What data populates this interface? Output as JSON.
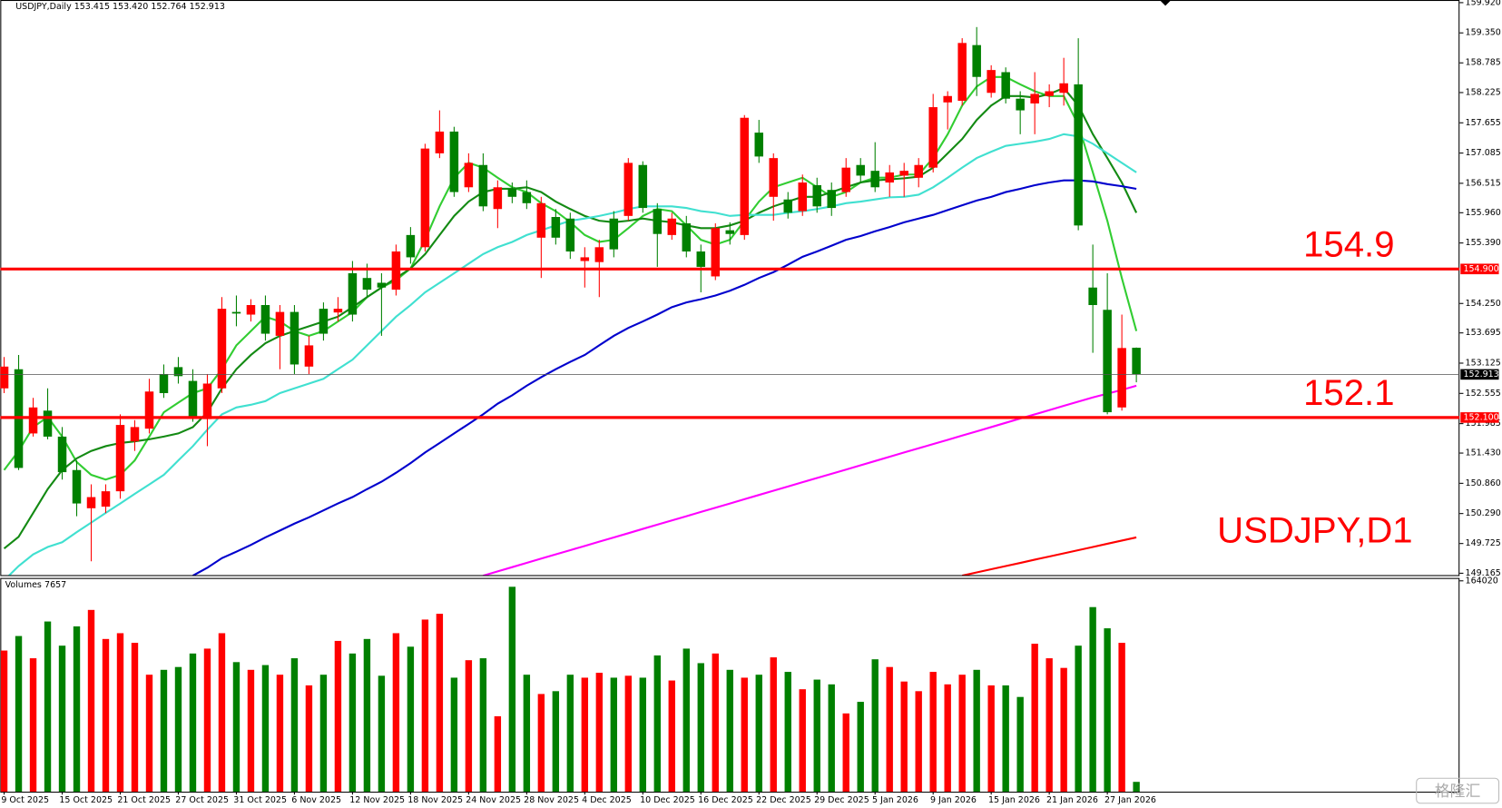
{
  "chart_data": [
    {
      "type": "candlestick",
      "title": "USDJPY,Daily  153.415 153.420 152.764 152.913",
      "watermark": "USDJPY,D1",
      "up_color": "#ff0000",
      "down_color": "#008000",
      "categories": [
        "9 Oct 2025",
        null,
        null,
        null,
        "15 Oct 2025",
        null,
        null,
        null,
        "21 Oct 2025",
        null,
        null,
        null,
        "27 Oct 2025",
        null,
        null,
        null,
        "31 Oct 2025",
        null,
        null,
        null,
        "6 Nov 2025",
        null,
        null,
        null,
        "12 Nov 2025",
        null,
        null,
        null,
        "18 Nov 2025",
        null,
        null,
        null,
        "24 Nov 2025",
        null,
        null,
        null,
        "28 Nov 2025",
        null,
        null,
        null,
        "4 Dec 2025",
        null,
        null,
        null,
        "10 Dec 2025",
        null,
        null,
        null,
        "16 Dec 2025",
        null,
        null,
        null,
        "22 Dec 2025",
        null,
        null,
        null,
        "29 Dec 2025",
        null,
        null,
        null,
        "5 Jan 2026",
        null,
        null,
        null,
        "9 Jan 2026",
        null,
        null,
        null,
        "15 Jan 2026",
        null,
        null,
        null,
        "21 Jan 2026",
        null,
        null,
        null,
        "27 Jan 2026",
        null,
        null
      ],
      "open": [
        152.65,
        153.01,
        151.8,
        152.23,
        151.74,
        151.11,
        150.39,
        150.42,
        150.71,
        151.65,
        151.89,
        152.92,
        153.05,
        152.79,
        152.07,
        152.65,
        154.09,
        154.04,
        154.22,
        153.64,
        154.09,
        153.06,
        154.15,
        154.08,
        154.82,
        154.73,
        154.64,
        154.51,
        155.54,
        155.31,
        157.08,
        157.49,
        156.44,
        156.86,
        156.03,
        156.41,
        156.35,
        155.49,
        155.88,
        155.85,
        155.05,
        155.03,
        155.85,
        155.9,
        156.86,
        156.03,
        155.54,
        155.76,
        155.23,
        154.76,
        155.63,
        155.54,
        157.47,
        156.26,
        156.21,
        155.99,
        156.48,
        156.39,
        156.35,
        156.86,
        156.75,
        156.53,
        156.66,
        156.62,
        156.81,
        158.04,
        158.07,
        159.12,
        158.22,
        158.61,
        158.11,
        158.02,
        158.16,
        158.22,
        158.38,
        154.55,
        154.13,
        152.29,
        153.415
      ],
      "high": [
        153.24,
        153.28,
        152.47,
        152.65,
        151.92,
        151.29,
        150.84,
        150.84,
        152.16,
        152.05,
        152.83,
        153.1,
        153.24,
        153.01,
        152.92,
        154.37,
        154.4,
        154.33,
        154.4,
        154.22,
        154.22,
        153.64,
        154.27,
        154.37,
        155.05,
        155.0,
        154.82,
        155.36,
        155.69,
        157.26,
        157.89,
        157.58,
        157.08,
        157.08,
        156.57,
        156.53,
        156.57,
        156.26,
        156.03,
        155.96,
        155.31,
        155.45,
        155.99,
        156.99,
        156.93,
        156.14,
        155.96,
        155.9,
        155.36,
        155.76,
        155.78,
        157.8,
        157.71,
        157.08,
        156.35,
        156.68,
        156.62,
        156.53,
        156.99,
        156.99,
        157.29,
        156.86,
        156.9,
        156.99,
        158.2,
        158.25,
        159.25,
        159.46,
        158.74,
        158.7,
        158.25,
        158.61,
        158.38,
        158.88,
        159.25,
        155.36,
        154.82,
        154.04,
        153.42
      ],
      "low": [
        152.56,
        151.11,
        151.74,
        151.69,
        150.93,
        150.24,
        149.39,
        150.3,
        150.57,
        151.47,
        151.8,
        152.47,
        152.74,
        152.02,
        151.56,
        152.56,
        153.82,
        153.91,
        153.55,
        153.01,
        152.92,
        152.92,
        153.55,
        153.91,
        153.91,
        154.37,
        153.64,
        154.4,
        155.0,
        155.23,
        156.99,
        156.26,
        156.35,
        155.99,
        155.67,
        156.14,
        156.03,
        154.73,
        155.36,
        155.09,
        154.55,
        154.37,
        155.12,
        155.81,
        155.96,
        154.94,
        155.45,
        155.12,
        154.46,
        154.69,
        155.36,
        155.45,
        156.9,
        155.81,
        155.85,
        155.9,
        155.96,
        155.9,
        156.26,
        156.53,
        156.35,
        156.26,
        156.26,
        156.44,
        156.72,
        157.53,
        157.98,
        158.16,
        158.13,
        158.02,
        157.44,
        157.44,
        157.95,
        157.98,
        155.63,
        153.32,
        152.16,
        152.23,
        152.764
      ],
      "close": [
        153.06,
        151.15,
        152.29,
        151.74,
        151.07,
        150.48,
        150.6,
        150.71,
        151.96,
        151.92,
        152.59,
        152.56,
        152.88,
        152.11,
        152.74,
        154.15,
        154.06,
        154.22,
        153.68,
        154.09,
        153.1,
        153.46,
        153.68,
        154.15,
        154.04,
        154.51,
        154.55,
        155.23,
        155.12,
        157.17,
        157.49,
        156.35,
        156.9,
        156.08,
        156.44,
        156.26,
        156.14,
        156.14,
        155.49,
        155.23,
        155.12,
        155.31,
        155.27,
        156.9,
        156.05,
        155.56,
        155.85,
        155.23,
        154.94,
        155.67,
        155.56,
        157.75,
        157.02,
        156.99,
        155.96,
        156.53,
        156.08,
        156.05,
        156.81,
        156.66,
        156.44,
        156.72,
        156.75,
        156.86,
        157.95,
        158.16,
        159.16,
        158.52,
        158.65,
        158.11,
        157.89,
        158.2,
        158.25,
        158.4,
        155.72,
        154.22,
        152.2,
        153.41,
        152.913
      ],
      "series": [
        {
          "color": "#32cd32",
          "values": [
            151.11,
            151.47,
            151.92,
            152.11,
            151.74,
            151.26,
            151.02,
            150.93,
            151.02,
            151.29,
            151.74,
            152.2,
            152.38,
            152.56,
            152.65,
            153.01,
            153.46,
            153.73,
            154.0,
            153.91,
            153.73,
            153.64,
            153.73,
            153.91,
            154.09,
            154.37,
            154.55,
            154.69,
            154.91,
            155.45,
            156.08,
            156.62,
            156.9,
            156.81,
            156.62,
            156.44,
            156.35,
            156.14,
            155.99,
            155.78,
            155.54,
            155.41,
            155.45,
            155.67,
            155.9,
            156.03,
            155.99,
            155.72,
            155.45,
            155.36,
            155.45,
            155.81,
            156.17,
            156.44,
            156.53,
            156.62,
            156.44,
            156.26,
            156.35,
            156.53,
            156.62,
            156.62,
            156.68,
            156.68,
            156.99,
            157.44,
            157.98,
            158.34,
            158.52,
            158.52,
            158.38,
            158.25,
            158.16,
            158.16,
            157.62,
            156.72,
            155.81,
            154.73,
            153.73
          ]
        },
        {
          "color": "#138a13",
          "values": [
            149.63,
            149.85,
            150.3,
            150.75,
            151.11,
            151.33,
            151.47,
            151.56,
            151.62,
            151.65,
            151.69,
            151.74,
            151.8,
            151.92,
            152.2,
            152.65,
            153.01,
            153.28,
            153.5,
            153.64,
            153.73,
            153.82,
            153.91,
            154.0,
            154.18,
            154.37,
            154.55,
            154.73,
            154.91,
            155.18,
            155.54,
            155.9,
            156.17,
            156.35,
            156.41,
            156.41,
            156.44,
            156.35,
            156.17,
            156.03,
            155.9,
            155.81,
            155.78,
            155.81,
            155.85,
            155.81,
            155.78,
            155.72,
            155.67,
            155.67,
            155.72,
            155.81,
            155.96,
            156.08,
            156.17,
            156.26,
            156.26,
            156.35,
            156.44,
            156.53,
            156.57,
            156.59,
            156.61,
            156.64,
            156.81,
            157.08,
            157.35,
            157.71,
            157.98,
            158.16,
            158.16,
            158.13,
            158.2,
            158.31,
            157.98,
            157.44,
            156.99,
            156.53,
            155.96
          ]
        },
        {
          "color": "#40e0d0",
          "values": [
            149.03,
            149.3,
            149.52,
            149.66,
            149.75,
            149.94,
            150.12,
            150.3,
            150.48,
            150.66,
            150.84,
            151.02,
            151.29,
            151.56,
            151.87,
            152.16,
            152.29,
            152.34,
            152.41,
            152.56,
            152.65,
            152.74,
            152.83,
            153.01,
            153.19,
            153.46,
            153.73,
            154.0,
            154.22,
            154.46,
            154.64,
            154.82,
            155.0,
            155.18,
            155.31,
            155.41,
            155.54,
            155.63,
            155.72,
            155.81,
            155.85,
            155.9,
            155.96,
            156.03,
            156.08,
            156.08,
            156.08,
            156.05,
            155.99,
            155.96,
            155.9,
            155.92,
            155.92,
            155.92,
            155.96,
            155.99,
            156.03,
            156.08,
            156.14,
            156.17,
            156.21,
            156.25,
            156.26,
            156.3,
            156.44,
            156.62,
            156.81,
            156.99,
            157.11,
            157.22,
            157.26,
            157.3,
            157.35,
            157.44,
            157.4,
            157.26,
            157.08,
            156.9,
            156.72
          ]
        },
        {
          "color": "#0000cd",
          "values": [
            null,
            null,
            null,
            null,
            null,
            null,
            null,
            null,
            null,
            null,
            null,
            null,
            null,
            149.12,
            149.27,
            149.45,
            149.57,
            149.7,
            149.84,
            149.97,
            150.1,
            150.22,
            150.35,
            150.48,
            150.6,
            150.75,
            150.89,
            151.06,
            151.24,
            151.44,
            151.62,
            151.8,
            151.98,
            152.16,
            152.36,
            152.52,
            152.7,
            152.86,
            153.01,
            153.15,
            153.28,
            153.46,
            153.64,
            153.79,
            153.91,
            154.04,
            154.18,
            154.27,
            154.33,
            154.4,
            154.49,
            154.6,
            154.73,
            154.84,
            154.98,
            155.13,
            155.23,
            155.34,
            155.45,
            155.52,
            155.61,
            155.69,
            155.78,
            155.85,
            155.92,
            156.01,
            156.1,
            156.19,
            156.26,
            156.35,
            156.41,
            156.48,
            156.53,
            156.57,
            156.57,
            156.55,
            156.5,
            156.46,
            156.41
          ]
        },
        {
          "color": "#ff00ff",
          "values": [
            null,
            null,
            null,
            null,
            null,
            null,
            null,
            null,
            null,
            null,
            null,
            null,
            null,
            null,
            null,
            null,
            null,
            null,
            null,
            null,
            null,
            null,
            null,
            null,
            null,
            null,
            null,
            null,
            null,
            null,
            null,
            null,
            null,
            149.12,
            149.2,
            149.28,
            149.36,
            149.44,
            149.52,
            149.6,
            149.68,
            149.76,
            149.84,
            149.92,
            150.0,
            150.08,
            150.16,
            150.24,
            150.32,
            150.4,
            150.48,
            150.56,
            150.64,
            150.72,
            150.8,
            150.88,
            150.96,
            151.04,
            151.12,
            151.2,
            151.28,
            151.36,
            151.44,
            151.52,
            151.6,
            151.68,
            151.76,
            151.84,
            151.92,
            152.0,
            152.08,
            152.16,
            152.24,
            152.32,
            152.4,
            152.48,
            152.55,
            152.62,
            152.7
          ]
        },
        {
          "color": "#ff0000",
          "values": [
            null,
            null,
            null,
            null,
            null,
            null,
            null,
            null,
            null,
            null,
            null,
            null,
            null,
            null,
            null,
            null,
            null,
            null,
            null,
            null,
            null,
            null,
            null,
            null,
            null,
            null,
            null,
            null,
            null,
            null,
            null,
            null,
            null,
            null,
            null,
            null,
            null,
            null,
            null,
            null,
            null,
            null,
            null,
            null,
            null,
            null,
            null,
            null,
            null,
            null,
            null,
            null,
            null,
            null,
            null,
            null,
            null,
            null,
            null,
            null,
            null,
            null,
            null,
            null,
            null,
            null,
            149.12,
            149.18,
            149.24,
            149.3,
            149.36,
            149.42,
            149.48,
            149.54,
            149.6,
            149.66,
            149.72,
            149.78,
            149.84
          ]
        }
      ],
      "hlines": [
        {
          "value": 154.9,
          "label": "154.900",
          "annotation": "154.9",
          "color": "#ff0000"
        },
        {
          "value": 152.1,
          "label": "152.100",
          "annotation": "152.1",
          "color": "#ff0000"
        }
      ],
      "last_price": {
        "value": 152.913,
        "label": "152.913"
      },
      "ylim": [
        149.13,
        159.97
      ],
      "yticks": [
        {
          "value": 159.92,
          "label": "159.920"
        },
        {
          "value": 159.35,
          "label": "159.350"
        },
        {
          "value": 158.785,
          "label": "158.785"
        },
        {
          "value": 158.225,
          "label": "158.225"
        },
        {
          "value": 157.655,
          "label": "157.655"
        },
        {
          "value": 157.085,
          "label": "157.085"
        },
        {
          "value": 156.515,
          "label": "156.515"
        },
        {
          "value": 155.96,
          "label": "155.960"
        },
        {
          "value": 155.39,
          "label": "155.390"
        },
        {
          "value": 154.25,
          "label": "154.250"
        },
        {
          "value": 153.695,
          "label": "153.695"
        },
        {
          "value": 153.125,
          "label": "153.125"
        },
        {
          "value": 152.555,
          "label": "152.555"
        },
        {
          "value": 151.985,
          "label": "151.985"
        },
        {
          "value": 151.43,
          "label": "151.430"
        },
        {
          "value": 150.86,
          "label": "150.860"
        },
        {
          "value": 150.29,
          "label": "150.290"
        },
        {
          "value": 149.725,
          "label": "149.725"
        },
        {
          "value": 149.165,
          "label": "149.165"
        }
      ],
      "logo": "格隆汇"
    },
    {
      "type": "bar",
      "title": "Volumes",
      "values": [
        109800,
        121100,
        103800,
        132400,
        113600,
        128600,
        141400,
        118800,
        123300,
        115800,
        91000,
        94800,
        97000,
        107500,
        111300,
        123300,
        100800,
        94800,
        98500,
        91000,
        103800,
        82700,
        91000,
        117300,
        107500,
        118800,
        90200,
        123300,
        112800,
        133900,
        138400,
        88700,
        102300,
        103800,
        58700,
        159400,
        91000,
        76000,
        78200,
        91000,
        88700,
        92500,
        88700,
        90200,
        88700,
        106000,
        86500,
        111300,
        100000,
        107500,
        94800,
        88700,
        91000,
        104500,
        93200,
        79700,
        87200,
        83500,
        60900,
        69900,
        103000,
        97000,
        85700,
        78200,
        93200,
        83500,
        91000,
        94800,
        82700,
        82700,
        73700,
        115100,
        103800,
        96300,
        113600,
        143600,
        127100,
        115800,
        7657
      ],
      "ylim": [
        0,
        164020
      ],
      "yticks": [
        164020
      ]
    }
  ]
}
